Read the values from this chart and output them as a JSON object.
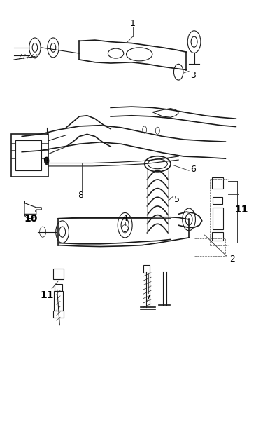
{
  "title": "",
  "background_color": "#ffffff",
  "line_color": "#1a1a1a",
  "label_color": "#000000",
  "fig_width": 3.76,
  "fig_height": 6.36,
  "dpi": 100
}
